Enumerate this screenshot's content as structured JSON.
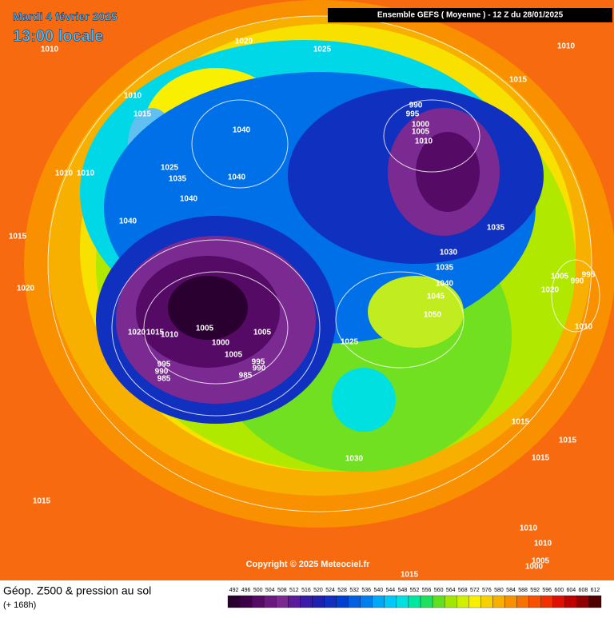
{
  "header": {
    "date": "Mardi 4 février 2025",
    "time": "13:00 locale",
    "model_info": "Ensemble GEFS  ( Moyenne )  -  12 Z du 28/01/2025"
  },
  "footer": {
    "title": "Géop. Z500 & pression au sol",
    "subtitle": "(+ 168h)",
    "copyright": "Copyright © 2025 Meteociel.fr"
  },
  "colorbar": [
    {
      "value": 492,
      "color": "#2a0030"
    },
    {
      "value": 496,
      "color": "#3d0048"
    },
    {
      "value": 500,
      "color": "#550a65"
    },
    {
      "value": 504,
      "color": "#6a1a7e"
    },
    {
      "value": 508,
      "color": "#7b2a92"
    },
    {
      "value": 512,
      "color": "#5a1a9a"
    },
    {
      "value": 516,
      "color": "#3a1aa8"
    },
    {
      "value": 520,
      "color": "#2020b0"
    },
    {
      "value": 524,
      "color": "#1030c0"
    },
    {
      "value": 528,
      "color": "#0040d0"
    },
    {
      "value": 532,
      "color": "#0060e0"
    },
    {
      "value": 536,
      "color": "#0080f0"
    },
    {
      "value": 540,
      "color": "#00a8f8"
    },
    {
      "value": 544,
      "color": "#00c8f8"
    },
    {
      "value": 548,
      "color": "#00e0e0"
    },
    {
      "value": 552,
      "color": "#00e8a0"
    },
    {
      "value": 556,
      "color": "#20e060"
    },
    {
      "value": 560,
      "color": "#60e020"
    },
    {
      "value": 564,
      "color": "#a0e800"
    },
    {
      "value": 568,
      "color": "#d0f000"
    },
    {
      "value": 572,
      "color": "#f8f000"
    },
    {
      "value": 576,
      "color": "#f8d000"
    },
    {
      "value": 580,
      "color": "#f8b000"
    },
    {
      "value": 584,
      "color": "#f89000"
    },
    {
      "value": 588,
      "color": "#f87000"
    },
    {
      "value": 592,
      "color": "#f85000"
    },
    {
      "value": 596,
      "color": "#f03000"
    },
    {
      "value": 600,
      "color": "#e01000"
    },
    {
      "value": 604,
      "color": "#c00000"
    },
    {
      "value": 608,
      "color": "#900000"
    },
    {
      "value": 612,
      "color": "#500000"
    }
  ],
  "isobars": [
    "1010",
    "1020",
    "1025",
    "1010",
    "1015",
    "1010",
    "1015",
    "1040",
    "990",
    "995",
    "1000",
    "1005",
    "1010",
    "1025",
    "1035",
    "1040",
    "1010",
    "1010",
    "1040",
    "1040",
    "1015",
    "1035",
    "1030",
    "1035",
    "1040",
    "1005",
    "990",
    "995",
    "1045",
    "1020",
    "1020",
    "1050",
    "1005",
    "1005",
    "1020",
    "1015",
    "1010",
    "1000",
    "1010",
    "1025",
    "1005",
    "995",
    "990",
    "995",
    "990",
    "985",
    "985",
    "1015",
    "1015",
    "1015",
    "1030",
    "1015",
    "1010",
    "1010",
    "1005",
    "1000",
    "1015"
  ]
}
